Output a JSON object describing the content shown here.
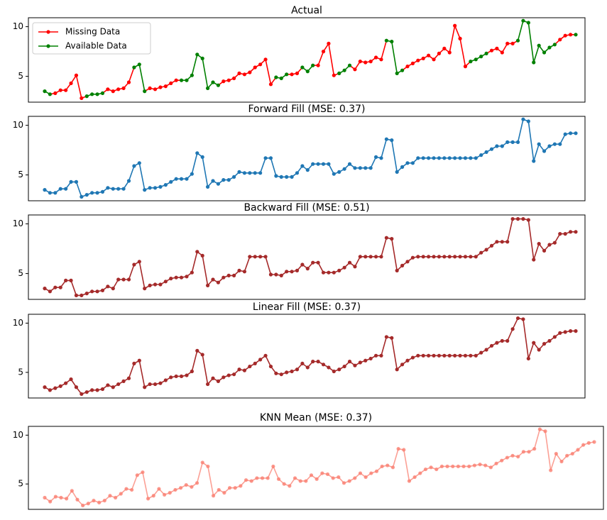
{
  "chart_data": [
    {
      "type": "line",
      "title": "Actual",
      "ylim": [
        2.4,
        10.9
      ],
      "yticks": [
        5,
        10
      ],
      "legend": {
        "placement": "upper-left",
        "entries": [
          {
            "label": "Missing Data",
            "color": "#ff0000"
          },
          {
            "label": "Available Data",
            "color": "#008000"
          }
        ]
      },
      "series": [
        {
          "name": "Available Data",
          "color": "#008000",
          "role": "available",
          "values": [
            3.5,
            3.2,
            3.3,
            3.6,
            3.6,
            4.3,
            5.1,
            2.8,
            3.0,
            3.2,
            3.2,
            3.3,
            3.7,
            3.5,
            3.7,
            3.8,
            4.4,
            5.9,
            6.2,
            3.5,
            3.8,
            3.7,
            3.9,
            4.0,
            4.3,
            4.6,
            4.6,
            4.6,
            5.1,
            7.2,
            6.8,
            3.8,
            4.4,
            4.1,
            4.5,
            4.6,
            4.8,
            5.3,
            5.2,
            5.4,
            5.9,
            6.2,
            6.7,
            4.2,
            4.9,
            4.8,
            5.2,
            5.2,
            5.3,
            5.9,
            5.5,
            6.1,
            6.1,
            7.5,
            8.3,
            5.1,
            5.3,
            5.6,
            6.1,
            5.7,
            6.5,
            6.4,
            6.5,
            6.9,
            6.7,
            8.6,
            8.5,
            5.3,
            5.6,
            6.0,
            6.3,
            6.6,
            6.8,
            7.1,
            6.7,
            7.3,
            7.8,
            7.4,
            10.1,
            8.8,
            6.0,
            6.5,
            6.7,
            7.0,
            7.3,
            7.6,
            7.8,
            7.4,
            8.3,
            8.3,
            8.6,
            10.6,
            10.4,
            6.4,
            8.1,
            7.4,
            7.9,
            8.2,
            8.7,
            9.1,
            9.2,
            9.2
          ]
        },
        {
          "name": "Missing Data",
          "color": "#ff0000",
          "role": "missing",
          "missing_ranges": [
            [
              2,
              7
            ],
            [
              12,
              16
            ],
            [
              20,
              25
            ],
            [
              34,
              43
            ],
            [
              47,
              48
            ],
            [
              52,
              55
            ],
            [
              59,
              64
            ],
            [
              69,
              80
            ],
            [
              85,
              89
            ],
            [
              98,
              100
            ]
          ]
        }
      ]
    },
    {
      "type": "line",
      "title": "Forward Fill (MSE: 0.37)",
      "ylim": [
        2.4,
        10.9
      ],
      "yticks": [
        5,
        10
      ],
      "series": [
        {
          "name": "Forward Fill",
          "color": "#1f77b4",
          "values": [
            3.5,
            3.2,
            3.2,
            3.6,
            3.6,
            4.3,
            4.3,
            2.8,
            3.0,
            3.2,
            3.2,
            3.3,
            3.7,
            3.6,
            3.6,
            3.6,
            4.4,
            5.9,
            6.2,
            3.5,
            3.7,
            3.7,
            3.8,
            4.0,
            4.3,
            4.6,
            4.6,
            4.6,
            5.1,
            7.2,
            6.8,
            3.8,
            4.4,
            4.1,
            4.5,
            4.5,
            4.8,
            5.3,
            5.2,
            5.2,
            5.2,
            5.2,
            6.7,
            6.7,
            4.9,
            4.8,
            4.8,
            4.8,
            5.2,
            5.9,
            5.5,
            6.1,
            6.1,
            6.1,
            6.1,
            5.1,
            5.3,
            5.6,
            6.1,
            5.7,
            5.7,
            5.7,
            5.7,
            6.8,
            6.7,
            8.6,
            8.5,
            5.3,
            5.8,
            6.2,
            6.2,
            6.7,
            6.7,
            6.7,
            6.7,
            6.7,
            6.7,
            6.7,
            6.7,
            6.7,
            6.7,
            6.7,
            6.7,
            7.0,
            7.3,
            7.6,
            7.9,
            7.9,
            8.3,
            8.3,
            8.3,
            10.6,
            10.4,
            6.4,
            8.1,
            7.4,
            7.9,
            8.1,
            8.1,
            9.1,
            9.2,
            9.2
          ]
        }
      ]
    },
    {
      "type": "line",
      "title": "Backward Fill (MSE: 0.51)",
      "ylim": [
        2.4,
        10.9
      ],
      "yticks": [
        5,
        10
      ],
      "series": [
        {
          "name": "Backward Fill",
          "color": "#a52a2a",
          "values": [
            3.5,
            3.2,
            3.6,
            3.6,
            4.3,
            4.3,
            2.8,
            2.8,
            3.0,
            3.2,
            3.2,
            3.3,
            3.7,
            3.5,
            4.4,
            4.4,
            4.4,
            5.9,
            6.2,
            3.5,
            3.8,
            3.9,
            3.9,
            4.2,
            4.5,
            4.6,
            4.6,
            4.7,
            5.1,
            7.2,
            6.8,
            3.8,
            4.4,
            4.1,
            4.6,
            4.8,
            4.8,
            5.3,
            5.2,
            6.7,
            6.7,
            6.7,
            6.7,
            4.9,
            4.9,
            4.8,
            5.2,
            5.2,
            5.3,
            5.9,
            5.5,
            6.1,
            6.1,
            5.1,
            5.1,
            5.1,
            5.3,
            5.6,
            6.1,
            5.7,
            6.7,
            6.7,
            6.7,
            6.7,
            6.7,
            8.6,
            8.5,
            5.3,
            5.8,
            6.2,
            6.6,
            6.7,
            6.7,
            6.7,
            6.7,
            6.7,
            6.7,
            6.7,
            6.7,
            6.7,
            6.7,
            6.7,
            6.7,
            7.1,
            7.4,
            7.8,
            8.2,
            8.2,
            8.2,
            10.5,
            10.5,
            10.5,
            10.4,
            6.4,
            8.0,
            7.3,
            7.9,
            8.1,
            9.0,
            9.0,
            9.2,
            9.2
          ]
        }
      ]
    },
    {
      "type": "line",
      "title": "Linear Fill (MSE: 0.37)",
      "ylim": [
        2.4,
        10.9
      ],
      "yticks": [
        5,
        10
      ],
      "series": [
        {
          "name": "Linear Fill",
          "color": "#a52a2a",
          "values": [
            3.5,
            3.2,
            3.4,
            3.6,
            3.9,
            4.3,
            3.5,
            2.8,
            3.0,
            3.2,
            3.2,
            3.3,
            3.7,
            3.5,
            3.8,
            4.1,
            4.4,
            5.9,
            6.2,
            3.5,
            3.8,
            3.8,
            3.9,
            4.2,
            4.5,
            4.6,
            4.6,
            4.7,
            5.1,
            7.2,
            6.8,
            3.8,
            4.4,
            4.1,
            4.5,
            4.7,
            4.8,
            5.3,
            5.2,
            5.6,
            5.9,
            6.3,
            6.7,
            5.6,
            4.9,
            4.8,
            5.0,
            5.1,
            5.3,
            5.9,
            5.5,
            6.1,
            6.1,
            5.8,
            5.5,
            5.1,
            5.3,
            5.6,
            6.1,
            5.7,
            6.0,
            6.2,
            6.4,
            6.7,
            6.7,
            8.6,
            8.5,
            5.3,
            5.8,
            6.2,
            6.5,
            6.7,
            6.7,
            6.7,
            6.7,
            6.7,
            6.7,
            6.7,
            6.7,
            6.7,
            6.7,
            6.7,
            6.7,
            7.0,
            7.3,
            7.7,
            8.0,
            8.2,
            8.2,
            9.4,
            10.5,
            10.4,
            6.4,
            8.0,
            7.3,
            7.9,
            8.2,
            8.6,
            9.0,
            9.1,
            9.2,
            9.2
          ]
        }
      ]
    },
    {
      "type": "line",
      "title": "KNN Mean (MSE: 0.37)",
      "ylim": [
        2.4,
        10.9
      ],
      "yticks": [
        5,
        10
      ],
      "series": [
        {
          "name": "KNN Mean",
          "color": "#fa8072",
          "values": [
            3.6,
            3.2,
            3.7,
            3.6,
            3.5,
            4.3,
            3.4,
            2.8,
            3.0,
            3.3,
            3.1,
            3.3,
            3.8,
            3.6,
            4.0,
            4.5,
            4.4,
            5.9,
            6.2,
            3.5,
            3.8,
            4.5,
            3.9,
            4.1,
            4.4,
            4.6,
            4.9,
            4.7,
            5.1,
            7.2,
            6.8,
            3.8,
            4.4,
            4.1,
            4.6,
            4.6,
            4.8,
            5.4,
            5.3,
            5.6,
            5.6,
            5.6,
            6.8,
            5.5,
            5.0,
            4.8,
            5.6,
            5.3,
            5.3,
            5.9,
            5.5,
            6.1,
            6.0,
            5.6,
            5.7,
            5.1,
            5.3,
            5.6,
            6.1,
            5.7,
            6.1,
            6.3,
            6.8,
            6.9,
            6.7,
            8.6,
            8.5,
            5.3,
            5.7,
            6.1,
            6.5,
            6.7,
            6.5,
            6.8,
            6.8,
            6.8,
            6.8,
            6.8,
            6.8,
            6.9,
            7.0,
            6.9,
            6.7,
            7.1,
            7.4,
            7.7,
            7.9,
            7.8,
            8.3,
            8.3,
            8.6,
            10.6,
            10.4,
            6.4,
            8.1,
            7.3,
            7.9,
            8.1,
            8.5,
            9.0,
            9.2,
            9.3
          ]
        }
      ]
    }
  ]
}
